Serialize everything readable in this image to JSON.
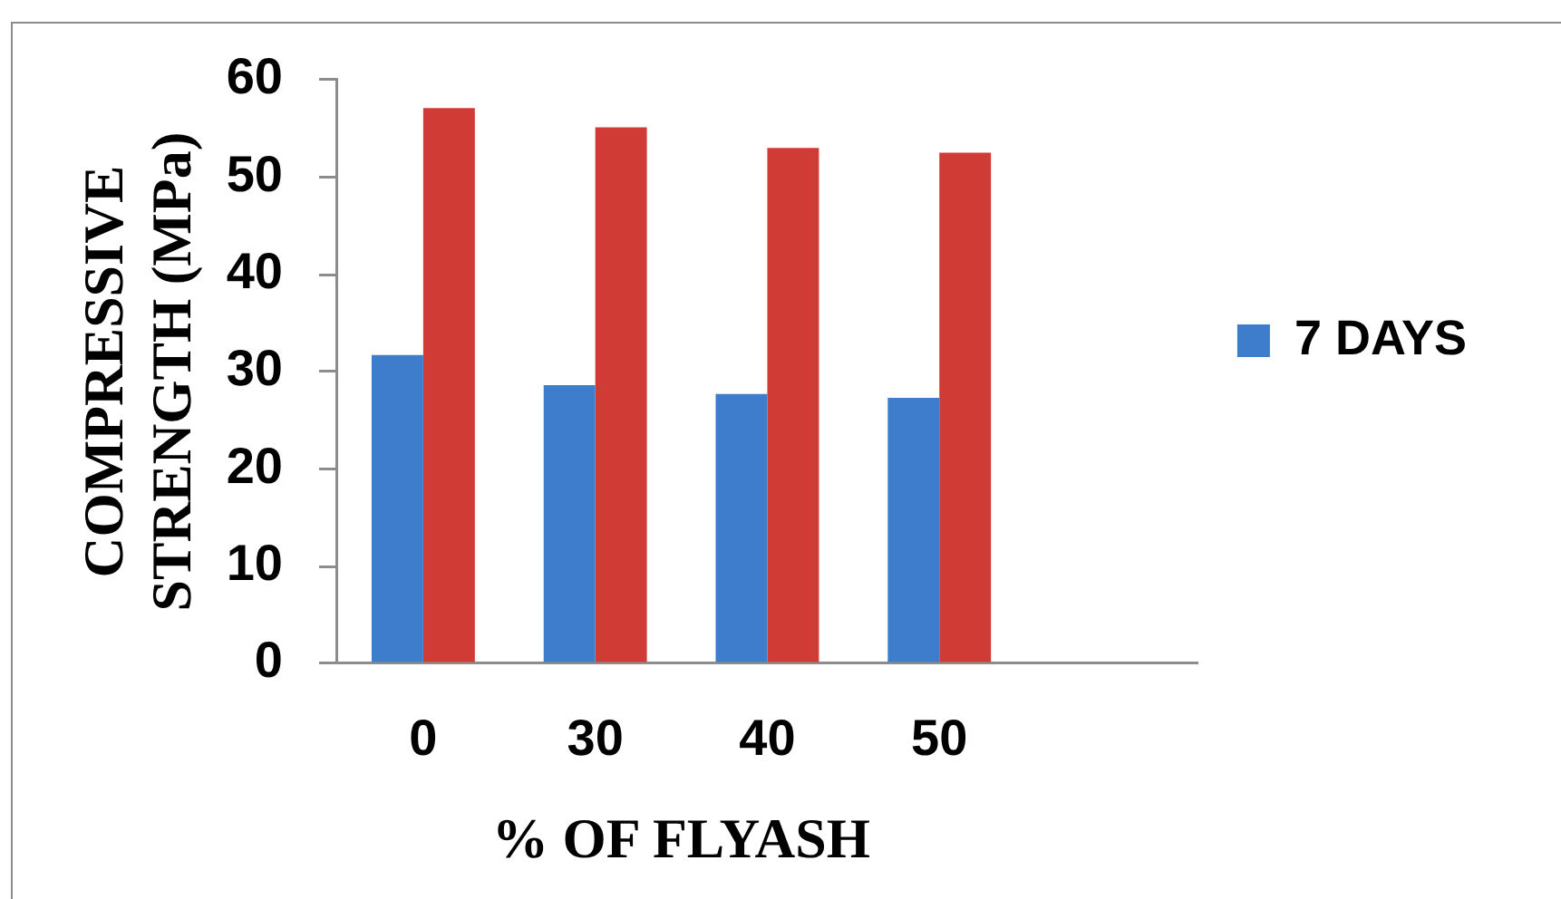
{
  "chart_data": {
    "type": "bar",
    "xlabel": "% OF FLYASH",
    "ylabel": "COMPRESSIVE STRENGTH (MPa)",
    "categories": [
      "0",
      "30",
      "40",
      "50",
      null
    ],
    "series": [
      {
        "name": "7 DAYS",
        "color": "#3d7dcc",
        "values": [
          31.7,
          28.6,
          27.7,
          27.3,
          null
        ]
      },
      {
        "color": "#d13b36",
        "values": [
          57.1,
          55.1,
          53.0,
          52.5,
          null
        ]
      }
    ],
    "ylim": [
      0,
      60
    ],
    "yticks": [
      0,
      10,
      20,
      30,
      40,
      50,
      60
    ],
    "legend": "right"
  }
}
